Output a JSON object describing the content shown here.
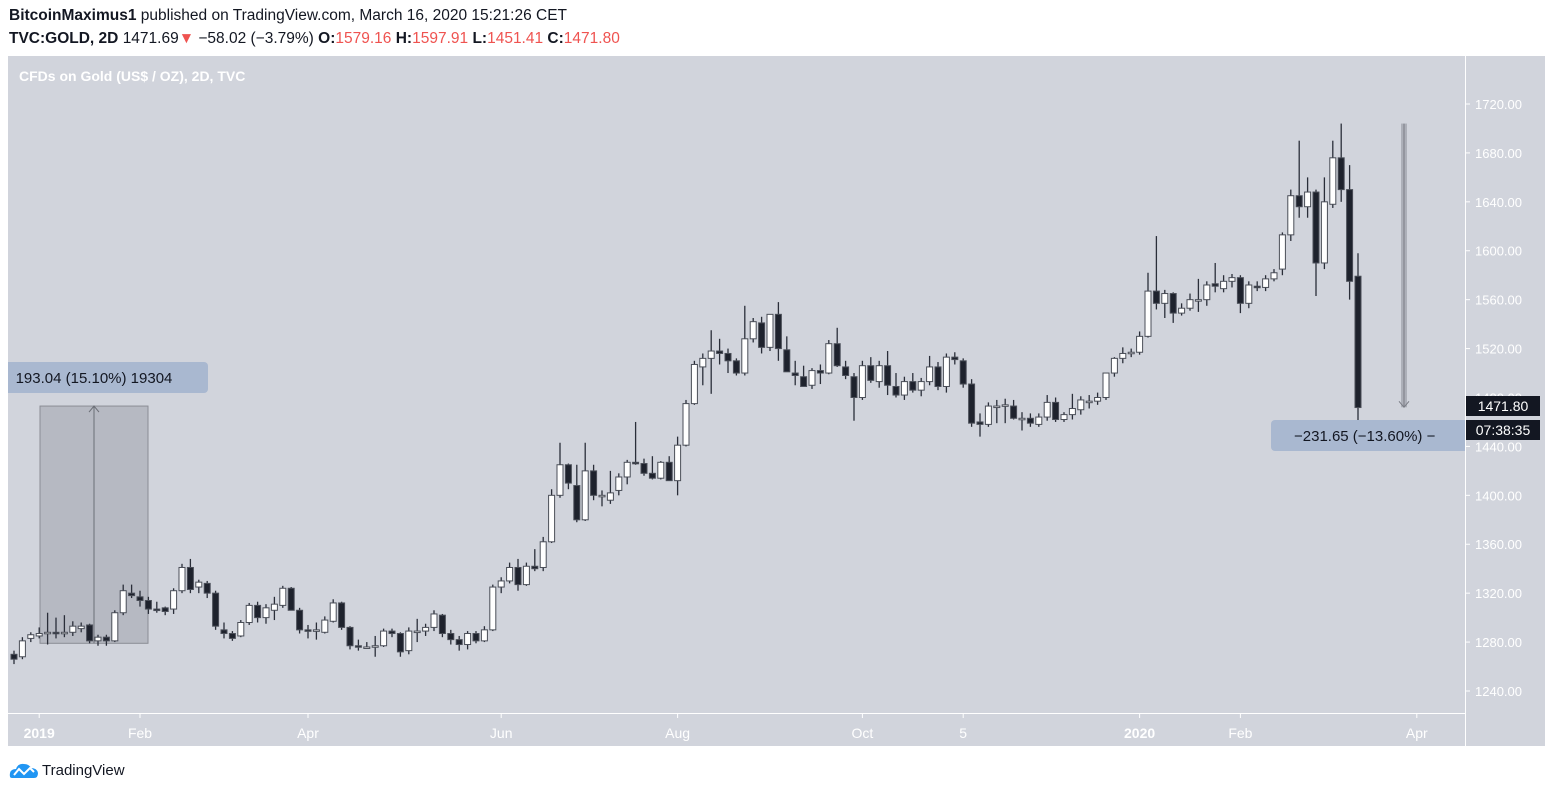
{
  "header": {
    "author": "BitcoinMaximus1",
    "published_text": "published on TradingView.com, March 16, 2020 15:21:26 CET",
    "symbol": "TVC:GOLD, 2D",
    "last": "1471.69",
    "change": "−58.02 (−3.79%)",
    "o_label": "O:",
    "o": "1579.16",
    "h_label": "H:",
    "h": "1597.91",
    "l_label": "L:",
    "l": "1451.41",
    "c_label": "C:",
    "c": "1471.80",
    "down_arrow_color": "#ef5350"
  },
  "chart_title": "CFDs on Gold (US$ / OZ), 2D, TVC",
  "price_label": "1471.80",
  "countdown": "07:38:35",
  "colors": {
    "background": "#d1d4dc",
    "up_body": "#ffffff",
    "down_body": "#1e222d",
    "measure_label": "#a9b8d0",
    "measure_box": "#b9bbc2"
  },
  "measure_left": {
    "text": "193.04 (15.10%) 19304",
    "from": 1279,
    "to": 1473
  },
  "measure_right": {
    "text": "−231.65 (−13.60%) −",
    "from": 1704,
    "to": 1472
  },
  "brand": "TradingView",
  "chart_data": {
    "type": "candlestick",
    "title": "CFDs on Gold (US$ / OZ), 2D, TVC",
    "ylim": [
      1220,
      1740
    ],
    "y_ticks": [
      "1720.00",
      "1680.00",
      "1640.00",
      "1600.00",
      "1560.00",
      "1520.00",
      "1480.00",
      "1440.00",
      "1400.00",
      "1360.00",
      "1320.00",
      "1280.00",
      "1240.00"
    ],
    "x_ticks": [
      {
        "label": "2019",
        "bold": true,
        "index": 3
      },
      {
        "label": "Feb",
        "bold": false,
        "index": 15
      },
      {
        "label": "Apr",
        "bold": false,
        "index": 35
      },
      {
        "label": "Jun",
        "bold": false,
        "index": 58
      },
      {
        "label": "Aug",
        "bold": false,
        "index": 79
      },
      {
        "label": "Oct",
        "bold": false,
        "index": 101
      },
      {
        "label": "5",
        "bold": false,
        "index": 113
      },
      {
        "label": "2020",
        "bold": true,
        "index": 134
      },
      {
        "label": "Feb",
        "bold": false,
        "index": 146
      },
      {
        "label": "Apr",
        "bold": false,
        "index": 167
      }
    ],
    "ohlc": [
      [
        1270,
        1273,
        1262,
        1266
      ],
      [
        1268,
        1284,
        1266,
        1281
      ],
      [
        1283,
        1288,
        1280,
        1286
      ],
      [
        1285,
        1292,
        1283,
        1287
      ],
      [
        1287,
        1304,
        1278,
        1288
      ],
      [
        1288,
        1300,
        1283,
        1287
      ],
      [
        1287,
        1302,
        1284,
        1288
      ],
      [
        1288,
        1297,
        1285,
        1293
      ],
      [
        1291,
        1296,
        1288,
        1293
      ],
      [
        1294,
        1295,
        1279,
        1281
      ],
      [
        1281,
        1286,
        1277,
        1284
      ],
      [
        1284,
        1286,
        1277,
        1281
      ],
      [
        1281,
        1306,
        1280,
        1304
      ],
      [
        1304,
        1327,
        1302,
        1322
      ],
      [
        1320,
        1327,
        1316,
        1318
      ],
      [
        1317,
        1322,
        1309,
        1314
      ],
      [
        1314,
        1317,
        1303,
        1307
      ],
      [
        1307,
        1313,
        1304,
        1306
      ],
      [
        1308,
        1309,
        1302,
        1305
      ],
      [
        1307,
        1324,
        1303,
        1322
      ],
      [
        1322,
        1344,
        1320,
        1341
      ],
      [
        1341,
        1348,
        1320,
        1323
      ],
      [
        1325,
        1331,
        1320,
        1329
      ],
      [
        1328,
        1330,
        1316,
        1320
      ],
      [
        1320,
        1322,
        1290,
        1293
      ],
      [
        1290,
        1296,
        1283,
        1287
      ],
      [
        1287,
        1289,
        1281,
        1283
      ],
      [
        1285,
        1298,
        1284,
        1296
      ],
      [
        1296,
        1312,
        1294,
        1310
      ],
      [
        1310,
        1313,
        1296,
        1300
      ],
      [
        1300,
        1311,
        1295,
        1308
      ],
      [
        1306,
        1317,
        1298,
        1311
      ],
      [
        1310,
        1326,
        1308,
        1324
      ],
      [
        1324,
        1325,
        1306,
        1306
      ],
      [
        1306,
        1308,
        1287,
        1290
      ],
      [
        1290,
        1294,
        1283,
        1289
      ],
      [
        1289,
        1296,
        1282,
        1290
      ],
      [
        1288,
        1301,
        1287,
        1298
      ],
      [
        1297,
        1315,
        1296,
        1312
      ],
      [
        1312,
        1313,
        1290,
        1292
      ],
      [
        1292,
        1293,
        1274,
        1277
      ],
      [
        1277,
        1282,
        1273,
        1276
      ],
      [
        1276,
        1280,
        1275,
        1276
      ],
      [
        1276,
        1285,
        1268,
        1277
      ],
      [
        1277,
        1291,
        1276,
        1289
      ],
      [
        1289,
        1291,
        1284,
        1287
      ],
      [
        1287,
        1288,
        1268,
        1272
      ],
      [
        1273,
        1292,
        1270,
        1289
      ],
      [
        1288,
        1299,
        1280,
        1289
      ],
      [
        1289,
        1295,
        1285,
        1292
      ],
      [
        1292,
        1306,
        1289,
        1303
      ],
      [
        1302,
        1303,
        1284,
        1287
      ],
      [
        1287,
        1290,
        1278,
        1282
      ],
      [
        1282,
        1285,
        1273,
        1278
      ],
      [
        1278,
        1289,
        1274,
        1287
      ],
      [
        1287,
        1289,
        1279,
        1281
      ],
      [
        1281,
        1293,
        1280,
        1290
      ],
      [
        1290,
        1327,
        1289,
        1325
      ],
      [
        1325,
        1333,
        1320,
        1330
      ],
      [
        1330,
        1345,
        1328,
        1341
      ],
      [
        1341,
        1348,
        1322,
        1327
      ],
      [
        1327,
        1345,
        1326,
        1342
      ],
      [
        1342,
        1356,
        1338,
        1340
      ],
      [
        1341,
        1366,
        1338,
        1362
      ],
      [
        1362,
        1405,
        1361,
        1400
      ],
      [
        1400,
        1443,
        1398,
        1425
      ],
      [
        1425,
        1426,
        1405,
        1410
      ],
      [
        1408,
        1425,
        1378,
        1380
      ],
      [
        1380,
        1443,
        1379,
        1420
      ],
      [
        1420,
        1425,
        1396,
        1400
      ],
      [
        1400,
        1404,
        1391,
        1400
      ],
      [
        1396,
        1420,
        1393,
        1402
      ],
      [
        1404,
        1418,
        1400,
        1415
      ],
      [
        1415,
        1429,
        1409,
        1427
      ],
      [
        1427,
        1460,
        1425,
        1426
      ],
      [
        1426,
        1430,
        1416,
        1418
      ],
      [
        1418,
        1432,
        1413,
        1414
      ],
      [
        1414,
        1428,
        1413,
        1427
      ],
      [
        1427,
        1432,
        1412,
        1412
      ],
      [
        1412,
        1448,
        1400,
        1441
      ],
      [
        1441,
        1478,
        1440,
        1475
      ],
      [
        1475,
        1510,
        1474,
        1507
      ],
      [
        1505,
        1516,
        1490,
        1512
      ],
      [
        1512,
        1535,
        1483,
        1518
      ],
      [
        1518,
        1528,
        1507,
        1516
      ],
      [
        1516,
        1520,
        1500,
        1510
      ],
      [
        1510,
        1512,
        1498,
        1500
      ],
      [
        1500,
        1555,
        1498,
        1528
      ],
      [
        1528,
        1545,
        1525,
        1542
      ],
      [
        1541,
        1546,
        1516,
        1521
      ],
      [
        1521,
        1548,
        1518,
        1548
      ],
      [
        1548,
        1558,
        1510,
        1520
      ],
      [
        1519,
        1530,
        1505,
        1501
      ],
      [
        1500,
        1510,
        1490,
        1498
      ],
      [
        1497,
        1506,
        1489,
        1489
      ],
      [
        1490,
        1504,
        1487,
        1502
      ],
      [
        1502,
        1507,
        1491,
        1500
      ],
      [
        1500,
        1527,
        1499,
        1524
      ],
      [
        1524,
        1537,
        1505,
        1506
      ],
      [
        1505,
        1510,
        1495,
        1498
      ],
      [
        1497,
        1500,
        1461,
        1480
      ],
      [
        1480,
        1510,
        1478,
        1506
      ],
      [
        1506,
        1513,
        1492,
        1494
      ],
      [
        1493,
        1510,
        1488,
        1506
      ],
      [
        1506,
        1518,
        1482,
        1490
      ],
      [
        1489,
        1500,
        1480,
        1482
      ],
      [
        1482,
        1497,
        1478,
        1493
      ],
      [
        1493,
        1500,
        1484,
        1486
      ],
      [
        1486,
        1496,
        1481,
        1493
      ],
      [
        1493,
        1514,
        1490,
        1505
      ],
      [
        1505,
        1509,
        1486,
        1489
      ],
      [
        1489,
        1516,
        1484,
        1513
      ],
      [
        1513,
        1517,
        1507,
        1511
      ],
      [
        1510,
        1512,
        1488,
        1491
      ],
      [
        1491,
        1495,
        1456,
        1459
      ],
      [
        1460,
        1467,
        1448,
        1458
      ],
      [
        1458,
        1476,
        1456,
        1473
      ],
      [
        1473,
        1478,
        1459,
        1473
      ],
      [
        1473,
        1479,
        1459,
        1474
      ],
      [
        1473,
        1478,
        1462,
        1463
      ],
      [
        1463,
        1468,
        1453,
        1463
      ],
      [
        1463,
        1467,
        1456,
        1459
      ],
      [
        1458,
        1467,
        1456,
        1464
      ],
      [
        1464,
        1482,
        1461,
        1476
      ],
      [
        1476,
        1480,
        1460,
        1462
      ],
      [
        1462,
        1468,
        1460,
        1466
      ],
      [
        1466,
        1483,
        1462,
        1471
      ],
      [
        1470,
        1481,
        1466,
        1478
      ],
      [
        1477,
        1482,
        1471,
        1477
      ],
      [
        1477,
        1484,
        1474,
        1480
      ],
      [
        1480,
        1500,
        1478,
        1500
      ],
      [
        1500,
        1513,
        1497,
        1512
      ],
      [
        1512,
        1521,
        1508,
        1516
      ],
      [
        1516,
        1520,
        1513,
        1517
      ],
      [
        1517,
        1534,
        1515,
        1530
      ],
      [
        1530,
        1582,
        1529,
        1567
      ],
      [
        1567,
        1612,
        1552,
        1557
      ],
      [
        1557,
        1568,
        1545,
        1565
      ],
      [
        1565,
        1566,
        1541,
        1549
      ],
      [
        1549,
        1557,
        1547,
        1553
      ],
      [
        1553,
        1565,
        1551,
        1560
      ],
      [
        1560,
        1577,
        1550,
        1560
      ],
      [
        1560,
        1575,
        1555,
        1572
      ],
      [
        1573,
        1590,
        1566,
        1571
      ],
      [
        1569,
        1580,
        1566,
        1575
      ],
      [
        1575,
        1581,
        1570,
        1578
      ],
      [
        1578,
        1580,
        1549,
        1557
      ],
      [
        1557,
        1575,
        1553,
        1572
      ],
      [
        1571,
        1575,
        1567,
        1570
      ],
      [
        1570,
        1580,
        1567,
        1577
      ],
      [
        1577,
        1585,
        1575,
        1582
      ],
      [
        1585,
        1615,
        1580,
        1613
      ],
      [
        1613,
        1650,
        1608,
        1645
      ],
      [
        1645,
        1690,
        1627,
        1636
      ],
      [
        1636,
        1660,
        1627,
        1648
      ],
      [
        1648,
        1650,
        1563,
        1590
      ],
      [
        1590,
        1660,
        1585,
        1640
      ],
      [
        1638,
        1690,
        1635,
        1676
      ],
      [
        1676,
        1704,
        1640,
        1650
      ],
      [
        1650,
        1670,
        1560,
        1575
      ],
      [
        1579.16,
        1597.91,
        1451.41,
        1471.8
      ]
    ]
  }
}
